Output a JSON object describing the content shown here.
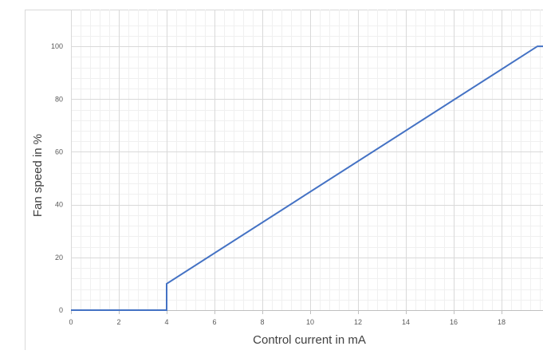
{
  "chart_data": {
    "type": "line",
    "title": "",
    "xlabel": "Control current in mA",
    "ylabel": "Fan speed in %",
    "xlim": [
      0,
      20
    ],
    "ylim": [
      0,
      110
    ],
    "x_ticks": [
      0,
      2,
      4,
      6,
      8,
      10,
      12,
      14,
      16,
      18
    ],
    "y_ticks": [
      0,
      20,
      40,
      60,
      80,
      100
    ],
    "x_tick_labels": [
      "0",
      "2",
      "4",
      "6",
      "8",
      "10",
      "12",
      "14",
      "16",
      "18"
    ],
    "y_tick_labels": [
      "0",
      "20",
      "40",
      "60",
      "80",
      "100"
    ],
    "grid": true,
    "minor_grid": true,
    "legend": "none",
    "series": [
      {
        "color": "#4472c4",
        "x": [
          0,
          4,
          4,
          19.5,
          20
        ],
        "y": [
          0,
          0,
          10,
          100,
          100
        ]
      }
    ]
  }
}
